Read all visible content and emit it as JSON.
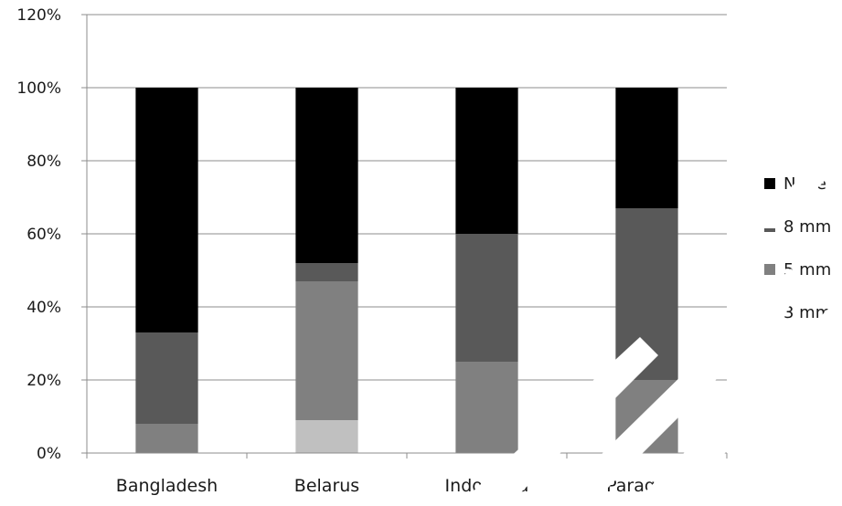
{
  "chart_data": {
    "type": "bar",
    "stacked": true,
    "categories": [
      "Bangladesh",
      "Belarus",
      "Indonesia",
      "Paraguay"
    ],
    "series": [
      {
        "name": "3 mm",
        "color": "#c0c0c0",
        "values": [
          0,
          9,
          0,
          0
        ]
      },
      {
        "name": "5 mm",
        "color": "#808080",
        "values": [
          8,
          38,
          25,
          20
        ]
      },
      {
        "name": "8 mm",
        "color": "#595959",
        "values": [
          25,
          5,
          35,
          47
        ]
      },
      {
        "name": "None",
        "color": "#000000",
        "values": [
          67,
          48,
          40,
          33
        ]
      }
    ],
    "ylim": [
      0,
      120
    ],
    "yticks": [
      "0%",
      "20%",
      "40%",
      "60%",
      "80%",
      "100%",
      "120%"
    ],
    "grid": true,
    "legend_position": "right",
    "xlabel": "",
    "ylabel": "",
    "title": ""
  },
  "legend_order": [
    "None",
    "8 mm",
    "5 mm",
    "3 mm"
  ]
}
